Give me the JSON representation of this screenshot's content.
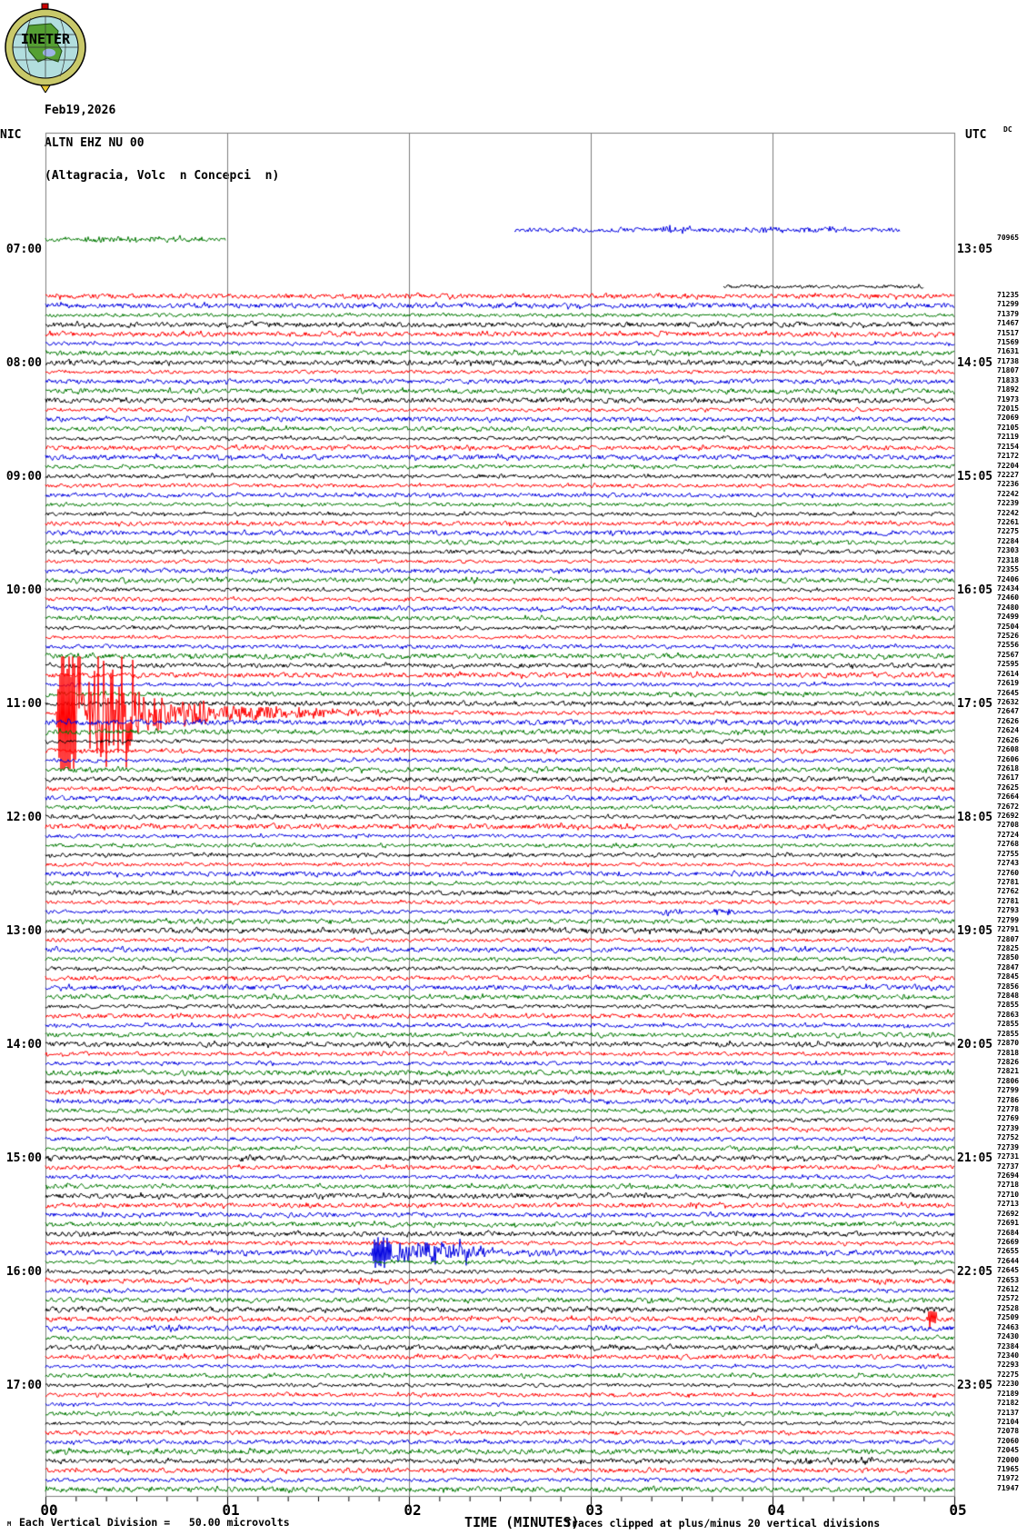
{
  "header": {
    "date": "Feb19,2026",
    "station": "ALTN EHZ NU 00",
    "location": "(Altagracia, Volc  n Concepci  n)"
  },
  "labels": {
    "network": "NIC",
    "utc_column": "UTC",
    "dc_column": "DC",
    "xlabel": "TIME (MINUTES)",
    "footer_corner": "M",
    "footer_scale": "Each Vertical Division =   50.00 microvolts",
    "footer_clip": "Traces clipped at plus/minus 20 vertical divisions"
  },
  "axis_ticks": [
    "00",
    "01",
    "02",
    "03",
    "04",
    "05"
  ],
  "hour_labels": [
    {
      "local": "07:00",
      "utc": "13:05"
    },
    {
      "local": "08:00",
      "utc": "14:05"
    },
    {
      "local": "09:00",
      "utc": "15:05"
    },
    {
      "local": "10:00",
      "utc": "16:05"
    },
    {
      "local": "11:00",
      "utc": "17:05"
    },
    {
      "local": "12:00",
      "utc": "18:05"
    },
    {
      "local": "13:00",
      "utc": "19:05"
    },
    {
      "local": "14:00",
      "utc": "20:05"
    },
    {
      "local": "15:00",
      "utc": "21:05"
    },
    {
      "local": "16:00",
      "utc": "22:05"
    },
    {
      "local": "17:00",
      "utc": "23:05"
    }
  ],
  "colors": {
    "black": "#000000",
    "red": "#ff0000",
    "blue": "#0000e0",
    "green": "#007800",
    "grid": "#7d7d7d",
    "logo_ring": "#c9c96a",
    "logo_sea": "#b2dede",
    "logo_land": "#55a033",
    "logo_lake": "#9db4e6"
  },
  "chart_data": {
    "type": "line",
    "subtype": "helicorder-seismogram",
    "title": "ALTN EHZ NU 00 (Altagracia, Volc n Concepci n) Feb19,2026",
    "xlabel": "TIME (MINUTES)",
    "x_range_minutes": [
      0,
      5
    ],
    "minutes_per_line": 5,
    "row_color_cycle_on_hour": [
      "black",
      "red",
      "blue",
      "green"
    ],
    "scale_note": "Each Vertical Division = 50.00 microvolts",
    "clip_note": "Traces clipped at plus/minus 20 vertical divisions",
    "rows_columns": [
      "local_time",
      "color",
      "dc_offset",
      "x_start_min",
      "x_end_min"
    ],
    "rows": [
      [
        "06:50",
        "blue",
        null,
        2.58,
        4.7
      ],
      [
        "06:55",
        "green",
        70965,
        0,
        0.99
      ],
      [
        "07:20",
        "black",
        null,
        3.73,
        4.83
      ],
      [
        "07:25",
        "red",
        71235
      ],
      [
        "07:30",
        "blue",
        71299
      ],
      [
        "07:35",
        "green",
        71379
      ],
      [
        "07:40",
        "black",
        71467
      ],
      [
        "07:45",
        "red",
        71517
      ],
      [
        "07:50",
        "blue",
        71569
      ],
      [
        "07:55",
        "green",
        71631
      ],
      [
        "08:00",
        "black",
        71738
      ],
      [
        "08:05",
        "red",
        71807
      ],
      [
        "08:10",
        "blue",
        71833
      ],
      [
        "08:15",
        "green",
        71892
      ],
      [
        "08:20",
        "black",
        71973
      ],
      [
        "08:25",
        "red",
        72015
      ],
      [
        "08:30",
        "blue",
        72069
      ],
      [
        "08:35",
        "green",
        72105
      ],
      [
        "08:40",
        "black",
        72119
      ],
      [
        "08:45",
        "red",
        72154
      ],
      [
        "08:50",
        "blue",
        72172
      ],
      [
        "08:55",
        "green",
        72204
      ],
      [
        "09:00",
        "black",
        72227
      ],
      [
        "09:05",
        "red",
        72236
      ],
      [
        "09:10",
        "blue",
        72242
      ],
      [
        "09:15",
        "green",
        72239
      ],
      [
        "09:20",
        "black",
        72242
      ],
      [
        "09:25",
        "red",
        72261
      ],
      [
        "09:30",
        "blue",
        72275
      ],
      [
        "09:35",
        "green",
        72284
      ],
      [
        "09:40",
        "black",
        72303
      ],
      [
        "09:45",
        "red",
        72318
      ],
      [
        "09:50",
        "blue",
        72355
      ],
      [
        "09:55",
        "green",
        72406
      ],
      [
        "10:00",
        "black",
        72434
      ],
      [
        "10:05",
        "red",
        72460
      ],
      [
        "10:10",
        "blue",
        72480
      ],
      [
        "10:15",
        "green",
        72499
      ],
      [
        "10:20",
        "black",
        72504
      ],
      [
        "10:25",
        "red",
        72526
      ],
      [
        "10:30",
        "blue",
        72556
      ],
      [
        "10:35",
        "green",
        72567
      ],
      [
        "10:40",
        "black",
        72595
      ],
      [
        "10:45",
        "red",
        72614
      ],
      [
        "10:50",
        "blue",
        72619
      ],
      [
        "10:55",
        "green",
        72645
      ],
      [
        "11:00",
        "black",
        72632
      ],
      [
        "11:05",
        "red",
        72647
      ],
      [
        "11:10",
        "blue",
        72626
      ],
      [
        "11:15",
        "green",
        72624
      ],
      [
        "11:20",
        "black",
        72626
      ],
      [
        "11:25",
        "red",
        72608
      ],
      [
        "11:30",
        "blue",
        72606
      ],
      [
        "11:35",
        "green",
        72618
      ],
      [
        "11:40",
        "black",
        72617
      ],
      [
        "11:45",
        "red",
        72625
      ],
      [
        "11:50",
        "blue",
        72664
      ],
      [
        "11:55",
        "green",
        72672
      ],
      [
        "12:00",
        "black",
        72692
      ],
      [
        "12:05",
        "red",
        72708
      ],
      [
        "12:10",
        "blue",
        72724
      ],
      [
        "12:15",
        "green",
        72768
      ],
      [
        "12:20",
        "black",
        72755
      ],
      [
        "12:25",
        "red",
        72743
      ],
      [
        "12:30",
        "blue",
        72760
      ],
      [
        "12:35",
        "green",
        72781
      ],
      [
        "12:40",
        "black",
        72762
      ],
      [
        "12:45",
        "red",
        72781
      ],
      [
        "12:50",
        "blue",
        72793
      ],
      [
        "12:55",
        "green",
        72799
      ],
      [
        "13:00",
        "black",
        72791
      ],
      [
        "13:05",
        "red",
        72807
      ],
      [
        "13:10",
        "blue",
        72825
      ],
      [
        "13:15",
        "green",
        72850
      ],
      [
        "13:20",
        "black",
        72847
      ],
      [
        "13:25",
        "red",
        72845
      ],
      [
        "13:30",
        "blue",
        72856
      ],
      [
        "13:35",
        "green",
        72848
      ],
      [
        "13:40",
        "black",
        72855
      ],
      [
        "13:45",
        "red",
        72863
      ],
      [
        "13:50",
        "blue",
        72855
      ],
      [
        "13:55",
        "green",
        72855
      ],
      [
        "14:00",
        "black",
        72870
      ],
      [
        "14:05",
        "red",
        72818
      ],
      [
        "14:10",
        "blue",
        72826
      ],
      [
        "14:15",
        "green",
        72821
      ],
      [
        "14:20",
        "black",
        72806
      ],
      [
        "14:25",
        "red",
        72799
      ],
      [
        "14:30",
        "blue",
        72786
      ],
      [
        "14:35",
        "green",
        72778
      ],
      [
        "14:40",
        "black",
        72769
      ],
      [
        "14:45",
        "red",
        72739
      ],
      [
        "14:50",
        "blue",
        72752
      ],
      [
        "14:55",
        "green",
        72739
      ],
      [
        "15:00",
        "black",
        72731
      ],
      [
        "15:05",
        "red",
        72737
      ],
      [
        "15:10",
        "blue",
        72694
      ],
      [
        "15:15",
        "green",
        72718
      ],
      [
        "15:20",
        "black",
        72710
      ],
      [
        "15:25",
        "red",
        72713
      ],
      [
        "15:30",
        "blue",
        72692
      ],
      [
        "15:35",
        "green",
        72691
      ],
      [
        "15:40",
        "black",
        72684
      ],
      [
        "15:45",
        "red",
        72669
      ],
      [
        "15:50",
        "blue",
        72655
      ],
      [
        "15:55",
        "green",
        72644
      ],
      [
        "16:00",
        "black",
        72645
      ],
      [
        "16:05",
        "red",
        72653
      ],
      [
        "16:10",
        "blue",
        72612
      ],
      [
        "16:15",
        "green",
        72572
      ],
      [
        "16:20",
        "black",
        72528
      ],
      [
        "16:25",
        "red",
        72509
      ],
      [
        "16:30",
        "blue",
        72463
      ],
      [
        "16:35",
        "green",
        72430
      ],
      [
        "16:40",
        "black",
        72384
      ],
      [
        "16:45",
        "red",
        72340
      ],
      [
        "16:50",
        "blue",
        72293
      ],
      [
        "16:55",
        "green",
        72275
      ],
      [
        "17:00",
        "black",
        72230
      ],
      [
        "17:05",
        "red",
        72189
      ],
      [
        "17:10",
        "blue",
        72182
      ],
      [
        "17:15",
        "green",
        72137
      ],
      [
        "17:20",
        "black",
        72104
      ],
      [
        "17:25",
        "red",
        72078
      ],
      [
        "17:30",
        "blue",
        72060
      ],
      [
        "17:35",
        "green",
        72045
      ],
      [
        "17:40",
        "black",
        72000
      ],
      [
        "17:45",
        "red",
        71965
      ],
      [
        "17:50",
        "blue",
        71972
      ],
      [
        "17:55",
        "green",
        71947
      ]
    ],
    "events": [
      {
        "row": "06:55",
        "type": "burst",
        "start": 0.22,
        "end": 0.92,
        "amp": 3.2
      },
      {
        "row": "06:50",
        "type": "burst",
        "start": 3.4,
        "end": 3.56,
        "amp": 4.0
      },
      {
        "row": "06:50",
        "type": "burst",
        "start": 3.95,
        "end": 4.4,
        "amp": 2.3
      },
      {
        "row": "11:05",
        "type": "quake",
        "start": 0.06,
        "burst_end": 0.5,
        "end": 2.05,
        "amp": 62,
        "clip": 62
      },
      {
        "row": "12:50",
        "type": "burst",
        "start": 3.39,
        "end": 3.5,
        "amp": 4.5
      },
      {
        "row": "12:50",
        "type": "burst",
        "start": 3.68,
        "end": 3.8,
        "amp": 4.0
      },
      {
        "row": "15:50",
        "type": "quake",
        "start": 1.79,
        "burst_end": 2.35,
        "end": 3.15,
        "amp": 13,
        "clip": 62
      },
      {
        "row": "16:25",
        "type": "spike",
        "start": 4.86,
        "end": 4.9,
        "amp": 9
      },
      {
        "row": "17:40",
        "type": "burst",
        "start": 4.05,
        "end": 4.55,
        "amp": 3.2
      }
    ]
  }
}
